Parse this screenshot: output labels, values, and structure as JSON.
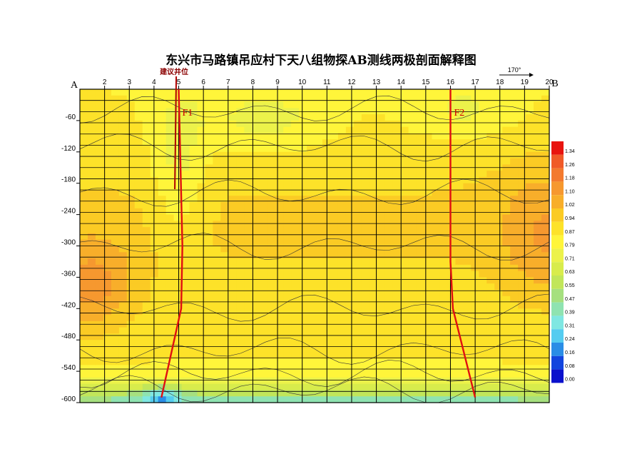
{
  "title": "东兴市马路镇吊应村下天八组物探AB测线两极剖面解释图",
  "chart_data": {
    "type": "heatmap",
    "title": "东兴市马路镇吊应村下天八组物探AB测线两极剖面解释图",
    "x_start_label": "A",
    "x_end_label": "B",
    "x_ticks": [
      "2",
      "3",
      "4",
      "5",
      "6",
      "7",
      "8",
      "9",
      "10",
      "11",
      "12",
      "13",
      "14",
      "15",
      "16",
      "17",
      "18",
      "19",
      "20"
    ],
    "y_ticks": [
      "-60",
      "-120",
      "-180",
      "-240",
      "-300",
      "-360",
      "-420",
      "-480",
      "-540",
      "-600"
    ],
    "xlim": [
      1,
      20
    ],
    "ylim": [
      -600,
      0
    ],
    "direction_label": "170°",
    "well_label": "建议井位",
    "well_x": 4.9,
    "faults": [
      {
        "name": "F1",
        "points": [
          [
            5.0,
            0
          ],
          [
            5.15,
            -300
          ],
          [
            5.1,
            -420
          ],
          [
            4.3,
            -590
          ]
        ]
      },
      {
        "name": "F2",
        "points": [
          [
            16.0,
            0
          ],
          [
            16.0,
            -330
          ],
          [
            16.1,
            -420
          ],
          [
            17.0,
            -590
          ]
        ]
      }
    ],
    "legend": {
      "labels": [
        "1.34",
        "1.26",
        "1.18",
        "1.10",
        "1.02",
        "0.94",
        "0.87",
        "0.79",
        "0.71",
        "0.63",
        "0.55",
        "0.47",
        "0.39",
        "0.31",
        "0.24",
        "0.16",
        "0.08",
        "0.00"
      ],
      "colors": [
        "#e8140f",
        "#f05a28",
        "#f37a2e",
        "#f6982f",
        "#f8ae2a",
        "#fbcb24",
        "#fde229",
        "#fff53a",
        "#ecf24a",
        "#d8ec4c",
        "#c1e65a",
        "#a6e07f",
        "#8fe3b1",
        "#7fe7e2",
        "#55ccf0",
        "#2a8de6",
        "#1345de",
        "#0a10cc"
      ]
    },
    "value_range": [
      0.0,
      1.34
    ]
  }
}
